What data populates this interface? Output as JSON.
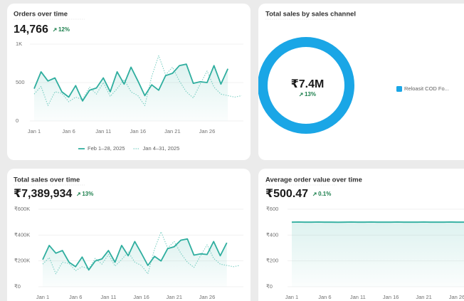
{
  "chart_data": [
    {
      "type": "line",
      "title": "Orders over time",
      "headline": "14,766",
      "change": "12%",
      "categories": [
        "Jan 1",
        null,
        null,
        null,
        null,
        "Jan 6",
        null,
        null,
        null,
        null,
        "Jan 11",
        null,
        null,
        null,
        null,
        "Jan 16",
        null,
        null,
        null,
        null,
        "Jan 21",
        null,
        null,
        null,
        null,
        "Jan 26",
        null,
        null,
        null,
        null,
        null
      ],
      "series": [
        {
          "name": "Feb 1–28, 2025",
          "color": "#2fae9f",
          "style": "solid",
          "values": [
            420,
            640,
            520,
            560,
            380,
            310,
            460,
            260,
            400,
            430,
            560,
            380,
            640,
            480,
            700,
            520,
            330,
            470,
            400,
            590,
            620,
            720,
            740,
            490,
            510,
            500,
            720,
            480,
            680,
            null,
            null
          ]
        },
        {
          "name": "Jan 4–31, 2025",
          "color": "#7fd0c5",
          "style": "dotted",
          "values": [
            350,
            450,
            200,
            380,
            360,
            250,
            310,
            280,
            440,
            350,
            500,
            320,
            420,
            540,
            380,
            330,
            200,
            580,
            850,
            600,
            700,
            520,
            380,
            300,
            480,
            650,
            440,
            350,
            330,
            310,
            330
          ]
        }
      ],
      "ylim": [
        0,
        1000
      ],
      "yticks": [
        0,
        500,
        {
          "value": 1000,
          "label": "1K"
        }
      ],
      "grid": true,
      "legend": "bottom"
    },
    {
      "type": "pie",
      "title": "Total sales by sales channel",
      "change": "13%",
      "categories": [
        "Reloasit COD Fo..."
      ],
      "values": [
        7400000
      ],
      "value_labels": [
        "₹7.4M"
      ],
      "colors": [
        "#1aa6e6"
      ],
      "legend": "right"
    },
    {
      "type": "line",
      "title": "Total sales over time",
      "headline": "₹7,389,934",
      "change": "13%",
      "categories": [
        "Jan 1",
        null,
        null,
        null,
        null,
        "Jan 6",
        null,
        null,
        null,
        null,
        "Jan 11",
        null,
        null,
        null,
        null,
        "Jan 16",
        null,
        null,
        null,
        null,
        "Jan 21",
        null,
        null,
        null,
        null,
        "Jan 26",
        null,
        null,
        null,
        null,
        null
      ],
      "series": [
        {
          "color": "#2fae9f",
          "style": "solid",
          "values": [
            210000,
            320000,
            260000,
            280000,
            190000,
            155000,
            230000,
            130000,
            200000,
            215000,
            280000,
            190000,
            320000,
            240000,
            350000,
            260000,
            165000,
            235000,
            200000,
            295000,
            310000,
            360000,
            370000,
            245000,
            255000,
            250000,
            350000,
            240000,
            340000,
            null,
            null
          ]
        },
        {
          "color": "#7fd0c5",
          "style": "dotted",
          "values": [
            175000,
            225000,
            100000,
            190000,
            180000,
            125000,
            155000,
            140000,
            220000,
            175000,
            250000,
            160000,
            210000,
            270000,
            190000,
            165000,
            100000,
            290000,
            425000,
            300000,
            350000,
            260000,
            190000,
            150000,
            240000,
            325000,
            220000,
            175000,
            165000,
            155000,
            165000
          ]
        }
      ],
      "ylim": [
        0,
        600000
      ],
      "yticks": [
        {
          "value": 0,
          "label": "₹0"
        },
        {
          "value": 200000,
          "label": "₹200K"
        },
        {
          "value": 400000,
          "label": "₹400K"
        },
        {
          "value": 600000,
          "label": "₹600K"
        }
      ],
      "grid": true
    },
    {
      "type": "line",
      "title": "Average order value over time",
      "headline": "₹500.47",
      "change": "0.1%",
      "categories": [
        "Jan 1",
        null,
        null,
        null,
        null,
        "Jan 6",
        null,
        null,
        null,
        null,
        "Jan 11",
        null,
        null,
        null,
        null,
        "Jan 16",
        null,
        null,
        null,
        null,
        "Jan 21",
        null,
        null,
        null,
        null,
        "Jan 26",
        null,
        null
      ],
      "series": [
        {
          "color": "#2fae9f",
          "style": "solid",
          "values": [
            500,
            501,
            500,
            500,
            501,
            500,
            500,
            499,
            500,
            501,
            500,
            500,
            501,
            500,
            500,
            500,
            501,
            500,
            500,
            500,
            501,
            500,
            500,
            500,
            501,
            500,
            500,
            500
          ]
        }
      ],
      "ylim": [
        0,
        600
      ],
      "yticks": [
        {
          "value": 0,
          "label": "₹0"
        },
        {
          "value": 200,
          "label": "₹200"
        },
        {
          "value": 400,
          "label": "₹400"
        },
        {
          "value": 600,
          "label": "₹600"
        }
      ],
      "grid": true
    }
  ]
}
